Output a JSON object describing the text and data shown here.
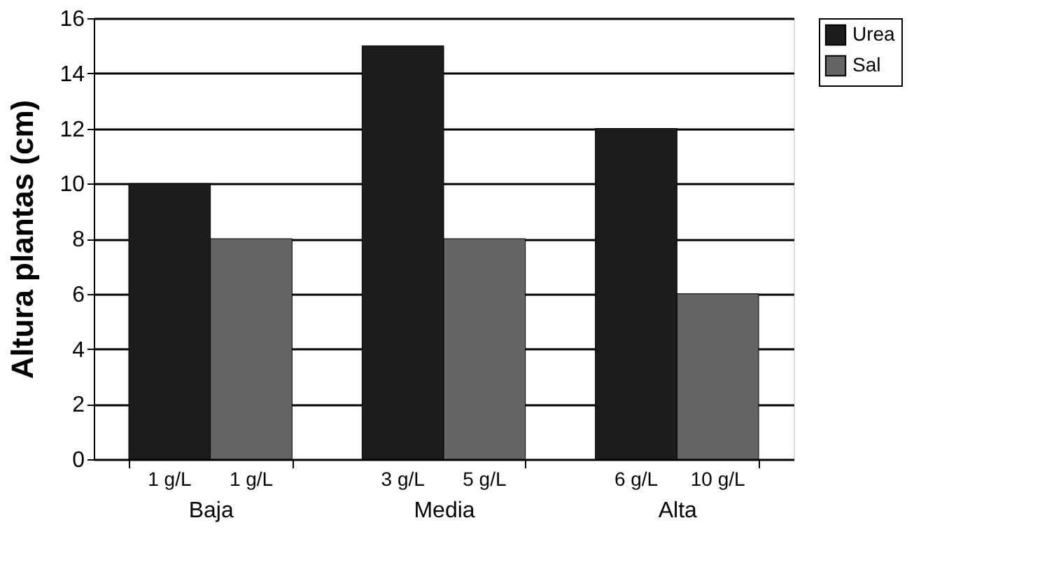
{
  "chart_data": {
    "type": "bar",
    "ylabel": "Altura plantas (cm)",
    "categories": [
      "Baja",
      "Media",
      "Alta"
    ],
    "series": [
      {
        "name": "Urea",
        "color": "#1c1c1c",
        "values": [
          10,
          15,
          12
        ]
      },
      {
        "name": "Sal",
        "color": "#656565",
        "values": [
          8,
          8,
          6
        ]
      }
    ],
    "ylim": [
      0,
      16
    ],
    "yticks": [
      0,
      2,
      4,
      6,
      8,
      10,
      12,
      14,
      16
    ],
    "grid": "y",
    "legend": "right",
    "annotations": [
      "1 g/L",
      "1 g/L",
      "3 g/L",
      "5 g/L",
      "6 g/L",
      "10 g/L"
    ]
  }
}
